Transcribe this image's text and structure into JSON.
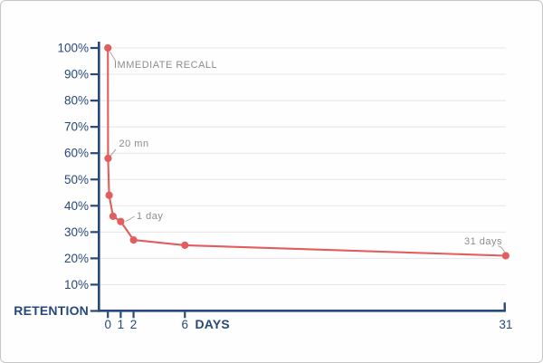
{
  "frame": {
    "background": "#fefefe",
    "border_color": "#c6c6c6"
  },
  "chart_data": {
    "type": "line",
    "title": "",
    "xlabel": "DAYS",
    "ylabel": "RETENTION",
    "xlim": [
      0,
      31
    ],
    "ylim": [
      0,
      100
    ],
    "grid": true,
    "legend": false,
    "colors": {
      "line": "#e25d5d",
      "point": "#e25d5d",
      "axis": "#27487b",
      "tick_label": "#27487b",
      "grid": "#e5e5e5",
      "annotation": "#8c8c8c",
      "leader": "#a6a6a6"
    },
    "x_ticks": [
      {
        "value": 0,
        "label": "0"
      },
      {
        "value": 1,
        "label": "1"
      },
      {
        "value": 2,
        "label": "2"
      },
      {
        "value": 6,
        "label": "6"
      },
      {
        "value": 31,
        "label": "31"
      }
    ],
    "y_ticks": [
      {
        "value": 10,
        "label": "10%"
      },
      {
        "value": 20,
        "label": "20%"
      },
      {
        "value": 30,
        "label": "30%"
      },
      {
        "value": 40,
        "label": "40%"
      },
      {
        "value": 50,
        "label": "50%"
      },
      {
        "value": 60,
        "label": "60%"
      },
      {
        "value": 70,
        "label": "70%"
      },
      {
        "value": 80,
        "label": "80%"
      },
      {
        "value": 90,
        "label": "90%"
      },
      {
        "value": 100,
        "label": "100%"
      }
    ],
    "series": [
      {
        "name": "retention",
        "color": "#e25d5d",
        "points": [
          {
            "day": 0,
            "retention_pct": 100
          },
          {
            "day": 0.014,
            "retention_pct": 58
          },
          {
            "day": 0.1,
            "retention_pct": 44
          },
          {
            "day": 0.4,
            "retention_pct": 36
          },
          {
            "day": 1,
            "retention_pct": 34
          },
          {
            "day": 2,
            "retention_pct": 27
          },
          {
            "day": 6,
            "retention_pct": 25
          },
          {
            "day": 31,
            "retention_pct": 21
          }
        ]
      }
    ],
    "annotations": [
      {
        "text": "IMMEDIATE RECALL",
        "point_index": 0
      },
      {
        "text": "20 mn",
        "point_index": 1
      },
      {
        "text": "1 day",
        "point_index": 4
      },
      {
        "text": "31 days",
        "point_index": 7
      }
    ]
  }
}
